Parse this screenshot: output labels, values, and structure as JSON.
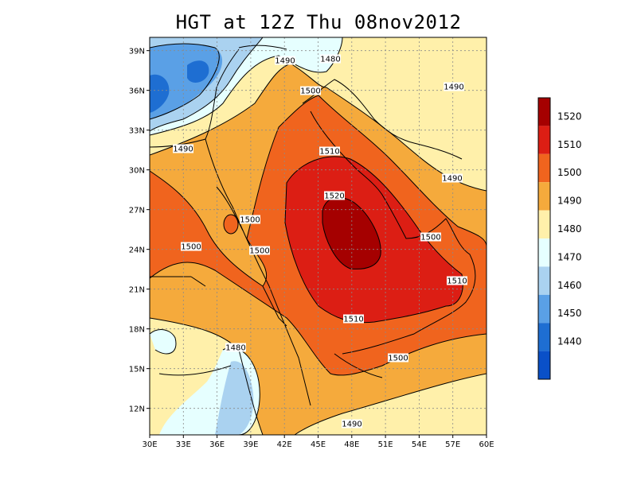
{
  "title": "HGT at 12Z Thu 08nov2012",
  "colors": {
    "background": "#ffffff",
    "border": "#000000",
    "coast": "#000000",
    "grid": "#8a8a8a"
  },
  "map": {
    "lon_range": [
      30,
      60
    ],
    "lat_range": [
      10,
      40
    ],
    "x_ticks": [
      "30E",
      "33E",
      "36E",
      "39E",
      "42E",
      "45E",
      "48E",
      "51E",
      "54E",
      "57E",
      "60E"
    ],
    "y_ticks": [
      "39N",
      "36N",
      "33N",
      "30N",
      "27N",
      "24N",
      "21N",
      "18N",
      "15N",
      "12N"
    ]
  },
  "colorbar": {
    "levels": [
      "1520",
      "1510",
      "1500",
      "1490",
      "1480",
      "1470",
      "1460",
      "1450",
      "1440"
    ],
    "colors": [
      "#a50000",
      "#dc1e14",
      "#f0641e",
      "#f5aa3c",
      "#fff0aa",
      "#e6ffff",
      "#aad2f0",
      "#5aa0e6",
      "#1e6ed2",
      "#0a50c8"
    ]
  },
  "contour_labels": [
    {
      "text": "1490"
    },
    {
      "text": "1480"
    },
    {
      "text": "1500"
    },
    {
      "text": "1490"
    },
    {
      "text": "1490"
    },
    {
      "text": "1510"
    },
    {
      "text": "1490"
    },
    {
      "text": "1520"
    },
    {
      "text": "1500"
    },
    {
      "text": "1500"
    },
    {
      "text": "1500"
    },
    {
      "text": "1500"
    },
    {
      "text": "1510"
    },
    {
      "text": "1510"
    },
    {
      "text": "1480"
    },
    {
      "text": "1500"
    },
    {
      "text": "1490"
    }
  ]
}
